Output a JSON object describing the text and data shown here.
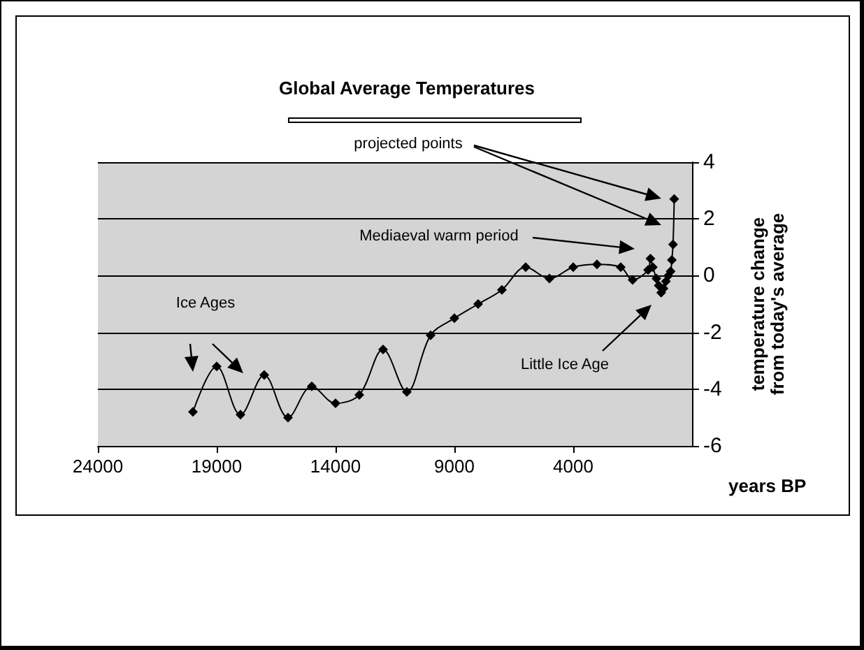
{
  "chart_data": {
    "type": "line",
    "title": "Global Average Temperatures",
    "xlabel": "years BP",
    "ylabel": "temperature change from today's average",
    "annotations": [
      "projected points",
      "Mediaeval warm period",
      "Ice Ages",
      "Little Ice Age"
    ],
    "series": [
      {
        "color": "#000000",
        "x": [
          20000,
          19000,
          18000,
          17000,
          16000,
          15000,
          14000,
          13000,
          12000,
          11000,
          10000,
          9000,
          8000,
          7000,
          6000,
          5000,
          4000,
          3000,
          2000,
          1500,
          850,
          750,
          650,
          500,
          400,
          300,
          200,
          100,
          0,
          -100,
          -150,
          -200,
          -250
        ],
        "values": [
          -4.8,
          -3.2,
          -4.9,
          -3.5,
          -5.0,
          -3.9,
          -4.5,
          -4.2,
          -2.6,
          -4.1,
          -2.1,
          -1.5,
          -1.0,
          -0.5,
          0.3,
          -0.1,
          0.3,
          0.4,
          0.3,
          -0.15,
          0.2,
          0.6,
          0.3,
          -0.1,
          -0.35,
          -0.6,
          -0.45,
          -0.2,
          0,
          0.15,
          0.55,
          1.1,
          2.7
        ]
      }
    ],
    "xlim": [
      24000,
      -1000
    ],
    "xticks": [
      24000,
      19000,
      14000,
      9000,
      4000
    ],
    "ylim": [
      -6,
      4
    ],
    "yticks": [
      -6,
      -4,
      -2,
      0,
      2,
      4
    ],
    "grid": "y",
    "marker": "diamond",
    "line_style": "solid"
  }
}
